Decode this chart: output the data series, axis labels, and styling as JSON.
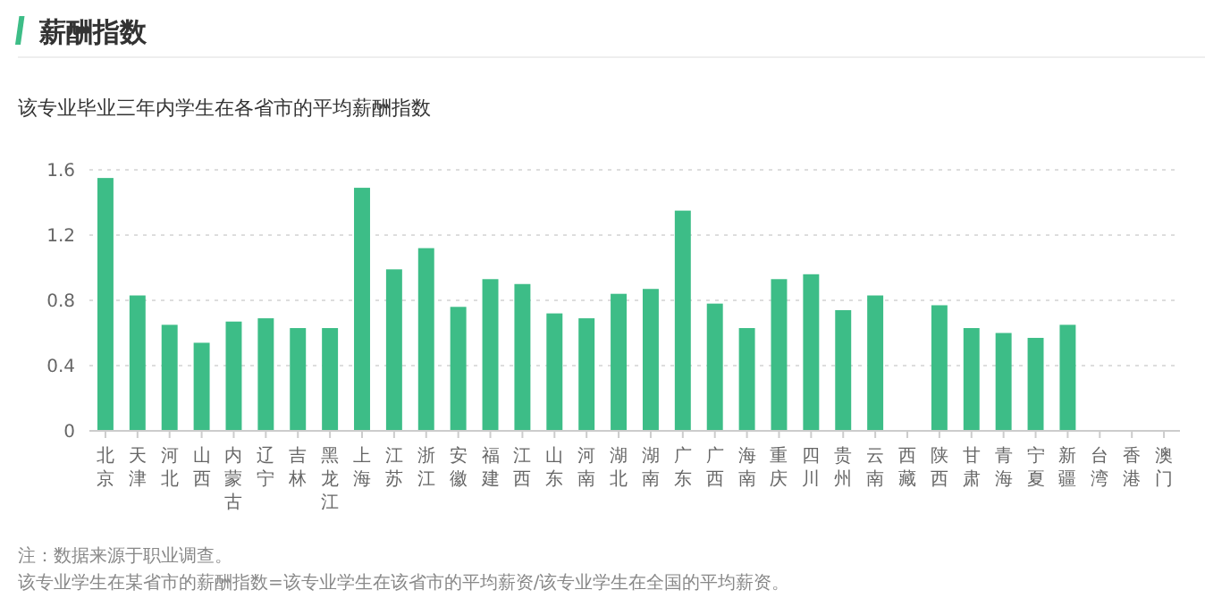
{
  "chart_data": {
    "type": "bar",
    "title": "薪酬指数",
    "subtitle": "该专业毕业三年内学生在各省市的平均薪酬指数",
    "categories": [
      "北京",
      "天津",
      "河北",
      "山西",
      "内蒙古",
      "辽宁",
      "吉林",
      "黑龙江",
      "上海",
      "江苏",
      "浙江",
      "安徽",
      "福建",
      "江西",
      "山东",
      "河南",
      "湖北",
      "湖南",
      "广东",
      "广西",
      "海南",
      "重庆",
      "四川",
      "贵州",
      "云南",
      "西藏",
      "陕西",
      "甘肃",
      "青海",
      "宁夏",
      "新疆",
      "台湾",
      "香港",
      "澳门"
    ],
    "values": [
      1.55,
      0.83,
      0.65,
      0.54,
      0.67,
      0.69,
      0.63,
      0.63,
      1.49,
      0.99,
      1.12,
      0.76,
      0.93,
      0.9,
      0.72,
      0.69,
      0.84,
      0.87,
      1.35,
      0.78,
      0.63,
      0.93,
      0.96,
      0.74,
      0.83,
      null,
      0.77,
      0.63,
      0.6,
      0.57,
      0.65,
      null,
      null,
      null
    ],
    "color": "#3dbd87",
    "ylim": [
      0,
      1.6
    ],
    "yticks": [
      0,
      0.4,
      0.8,
      1.2,
      1.6
    ],
    "grid": "y",
    "annotations": [
      "注：数据来源于职业调查。",
      "该专业学生在某省市的薪酬指数=该专业学生在该省市的平均薪资/该专业学生在全国的平均薪资。"
    ]
  }
}
